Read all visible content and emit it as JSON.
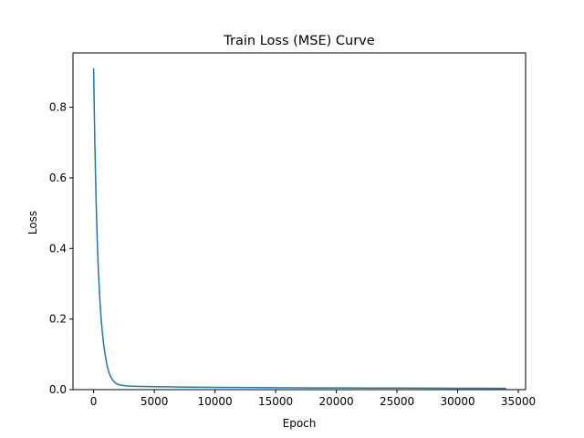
{
  "chart_data": {
    "type": "line",
    "title": "Train Loss (MSE) Curve",
    "xlabel": "Epoch",
    "ylabel": "Loss",
    "xlim": [
      -1700,
      35600
    ],
    "ylim": [
      0.0,
      0.954
    ],
    "xticks": [
      0,
      5000,
      10000,
      15000,
      20000,
      25000,
      30000,
      35000
    ],
    "yticks": [
      0.0,
      0.2,
      0.4,
      0.6,
      0.8
    ],
    "ytick_labels": [
      "0.0",
      "0.2",
      "0.4",
      "0.6",
      "0.8"
    ],
    "grid": false,
    "series": [
      {
        "color": "#1f77b4",
        "x": [
          0,
          50,
          100,
          150,
          200,
          300,
          400,
          500,
          600,
          700,
          800,
          900,
          1000,
          1100,
          1200,
          1300,
          1400,
          1500,
          1600,
          1700,
          1800,
          1900,
          2000,
          2200,
          2400,
          2600,
          2800,
          3000,
          3500,
          4000,
          5000,
          6000,
          7000,
          8000,
          10000,
          12000,
          15000,
          18000,
          20000,
          22000,
          25000,
          28000,
          30000,
          32000,
          34000
        ],
        "y": [
          0.91,
          0.8,
          0.7,
          0.62,
          0.54,
          0.42,
          0.33,
          0.265,
          0.21,
          0.17,
          0.135,
          0.11,
          0.088,
          0.07,
          0.056,
          0.045,
          0.037,
          0.031,
          0.026,
          0.022,
          0.019,
          0.017,
          0.015,
          0.013,
          0.012,
          0.011,
          0.0105,
          0.01,
          0.0095,
          0.009,
          0.0085,
          0.008,
          0.0075,
          0.007,
          0.0065,
          0.006,
          0.0055,
          0.005,
          0.0048,
          0.0046,
          0.0044,
          0.0042,
          0.004,
          0.0038,
          0.0036
        ]
      }
    ]
  }
}
